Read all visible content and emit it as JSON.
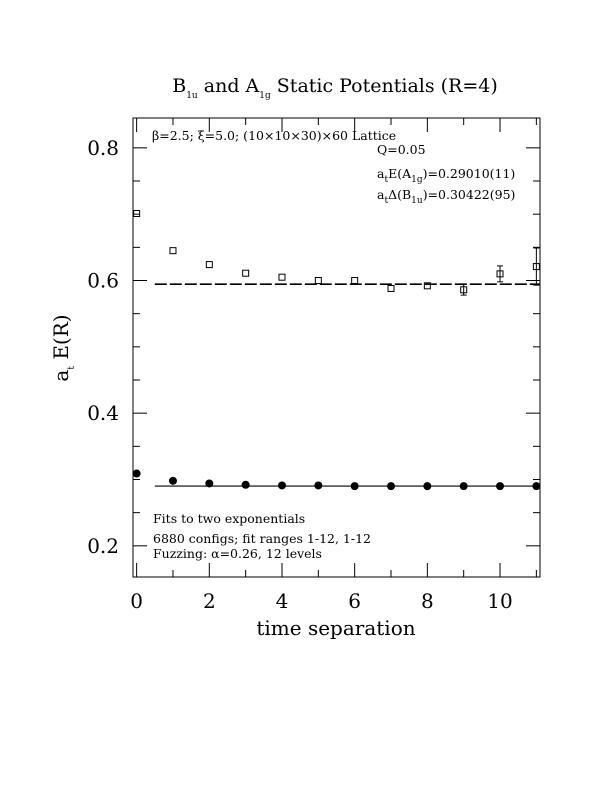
{
  "chart_data": {
    "type": "scatter",
    "title": {
      "main": "B",
      "sub1": "1u",
      "mid": " and A",
      "sub2": "1g",
      "tail": " Static Potentials (R=4)"
    },
    "xlabel": "time separation",
    "ylabel": {
      "main": "a",
      "sub": "t",
      "tail": " E(R)"
    },
    "xlim": [
      -0.1,
      11.1
    ],
    "ylim": [
      0.153,
      0.845
    ],
    "xticks": [
      0,
      2,
      4,
      6,
      8,
      10
    ],
    "xtick_labels": [
      "0",
      "2",
      "4",
      "6",
      "8",
      "10"
    ],
    "yticks": [
      0.2,
      0.4,
      0.6,
      0.8
    ],
    "ytick_labels": [
      "0.2",
      "0.4",
      "0.6",
      "0.8"
    ],
    "annotations": {
      "lattice": "β=2.5; ξ=5.0; (10×10×30)×60 Lattice",
      "q": "Q=0.05",
      "a1g": {
        "pre": "a",
        "pre_sub": "t",
        "mid": "E(A",
        "mid_sub": "1g",
        "post": ")=0.29010(11)"
      },
      "b1u": {
        "pre": "a",
        "pre_sub": "t",
        "mid": "Δ(B",
        "mid_sub": "1u",
        "post": ")=0.30422(95)"
      },
      "fits": "Fits to two exponentials",
      "configs": "6880 configs; fit ranges 1-12, 1-12",
      "fuzzing": "Fuzzing: α=0.26, 12 levels"
    },
    "series": [
      {
        "name": "B1u",
        "marker": "open-square",
        "x": [
          0,
          1,
          2,
          3,
          4,
          5,
          6,
          7,
          8,
          9,
          10,
          11
        ],
        "y": [
          0.701,
          0.645,
          0.624,
          0.611,
          0.605,
          0.6,
          0.6,
          0.588,
          0.592,
          0.586,
          0.61,
          0.621
        ],
        "err": [
          0.002,
          0.002,
          0.002,
          0.002,
          0.002,
          0.003,
          0.004,
          0.005,
          0.005,
          0.008,
          0.012,
          0.028
        ],
        "fit": {
          "value": 0.5945,
          "x": [
            0.5,
            11.1
          ],
          "style": "dashed"
        }
      },
      {
        "name": "A1g",
        "marker": "filled-circle",
        "x": [
          0,
          1,
          2,
          3,
          4,
          5,
          6,
          7,
          8,
          9,
          10,
          11
        ],
        "y": [
          0.309,
          0.298,
          0.294,
          0.292,
          0.291,
          0.291,
          0.29,
          0.29,
          0.29,
          0.29,
          0.29,
          0.29
        ],
        "err": [
          0.001,
          0.001,
          0.001,
          0.001,
          0.001,
          0.001,
          0.001,
          0.001,
          0.001,
          0.001,
          0.001,
          0.001
        ],
        "fit": {
          "value": 0.2901,
          "x": [
            0.5,
            11.1
          ],
          "style": "solid"
        }
      }
    ]
  }
}
